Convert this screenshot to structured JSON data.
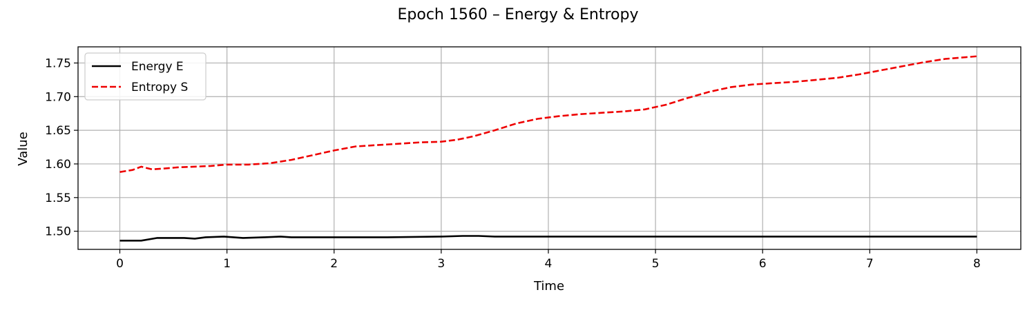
{
  "chart_data": {
    "type": "line",
    "title": "Epoch 1560 – Energy & Entropy",
    "xlabel": "Time",
    "ylabel": "Value",
    "xlim": [
      -0.39,
      8.41
    ],
    "ylim": [
      1.473,
      1.774
    ],
    "xticks": [
      0,
      1,
      2,
      3,
      4,
      5,
      6,
      7,
      8
    ],
    "yticks": [
      1.5,
      1.55,
      1.6,
      1.65,
      1.7,
      1.75
    ],
    "grid": true,
    "legend_position": "top-left",
    "series": [
      {
        "name": "Energy E",
        "color": "#000000",
        "style": "solid",
        "points": [
          [
            0,
            1.486
          ],
          [
            0.2,
            1.486
          ],
          [
            0.35,
            1.49
          ],
          [
            0.6,
            1.49
          ],
          [
            0.7,
            1.489
          ],
          [
            0.8,
            1.491
          ],
          [
            0.97,
            1.492
          ],
          [
            1.15,
            1.49
          ],
          [
            1.35,
            1.491
          ],
          [
            1.5,
            1.492
          ],
          [
            1.6,
            1.491
          ],
          [
            2.0,
            1.491
          ],
          [
            2.5,
            1.491
          ],
          [
            3.0,
            1.492
          ],
          [
            3.2,
            1.493
          ],
          [
            3.35,
            1.493
          ],
          [
            3.5,
            1.492
          ],
          [
            4.0,
            1.492
          ],
          [
            5.0,
            1.492
          ],
          [
            6.0,
            1.492
          ],
          [
            7.0,
            1.492
          ],
          [
            8.0,
            1.492
          ]
        ]
      },
      {
        "name": "Entropy S",
        "color": "#ee0000",
        "style": "dashed",
        "points": [
          [
            0,
            1.588
          ],
          [
            0.12,
            1.591
          ],
          [
            0.2,
            1.596
          ],
          [
            0.3,
            1.592
          ],
          [
            0.4,
            1.593
          ],
          [
            0.55,
            1.595
          ],
          [
            0.7,
            1.596
          ],
          [
            0.85,
            1.597
          ],
          [
            1.0,
            1.599
          ],
          [
            1.2,
            1.599
          ],
          [
            1.4,
            1.601
          ],
          [
            1.6,
            1.606
          ],
          [
            1.8,
            1.613
          ],
          [
            2.0,
            1.62
          ],
          [
            2.2,
            1.626
          ],
          [
            2.4,
            1.628
          ],
          [
            2.6,
            1.63
          ],
          [
            2.8,
            1.632
          ],
          [
            3.0,
            1.633
          ],
          [
            3.15,
            1.636
          ],
          [
            3.3,
            1.641
          ],
          [
            3.5,
            1.65
          ],
          [
            3.7,
            1.66
          ],
          [
            3.9,
            1.667
          ],
          [
            4.1,
            1.671
          ],
          [
            4.3,
            1.674
          ],
          [
            4.5,
            1.676
          ],
          [
            4.7,
            1.678
          ],
          [
            4.9,
            1.681
          ],
          [
            5.1,
            1.688
          ],
          [
            5.3,
            1.698
          ],
          [
            5.5,
            1.707
          ],
          [
            5.7,
            1.714
          ],
          [
            5.9,
            1.718
          ],
          [
            6.1,
            1.72
          ],
          [
            6.3,
            1.722
          ],
          [
            6.5,
            1.725
          ],
          [
            6.7,
            1.728
          ],
          [
            6.9,
            1.733
          ],
          [
            7.1,
            1.739
          ],
          [
            7.3,
            1.745
          ],
          [
            7.5,
            1.751
          ],
          [
            7.7,
            1.756
          ],
          [
            8.0,
            1.76
          ]
        ]
      }
    ]
  }
}
